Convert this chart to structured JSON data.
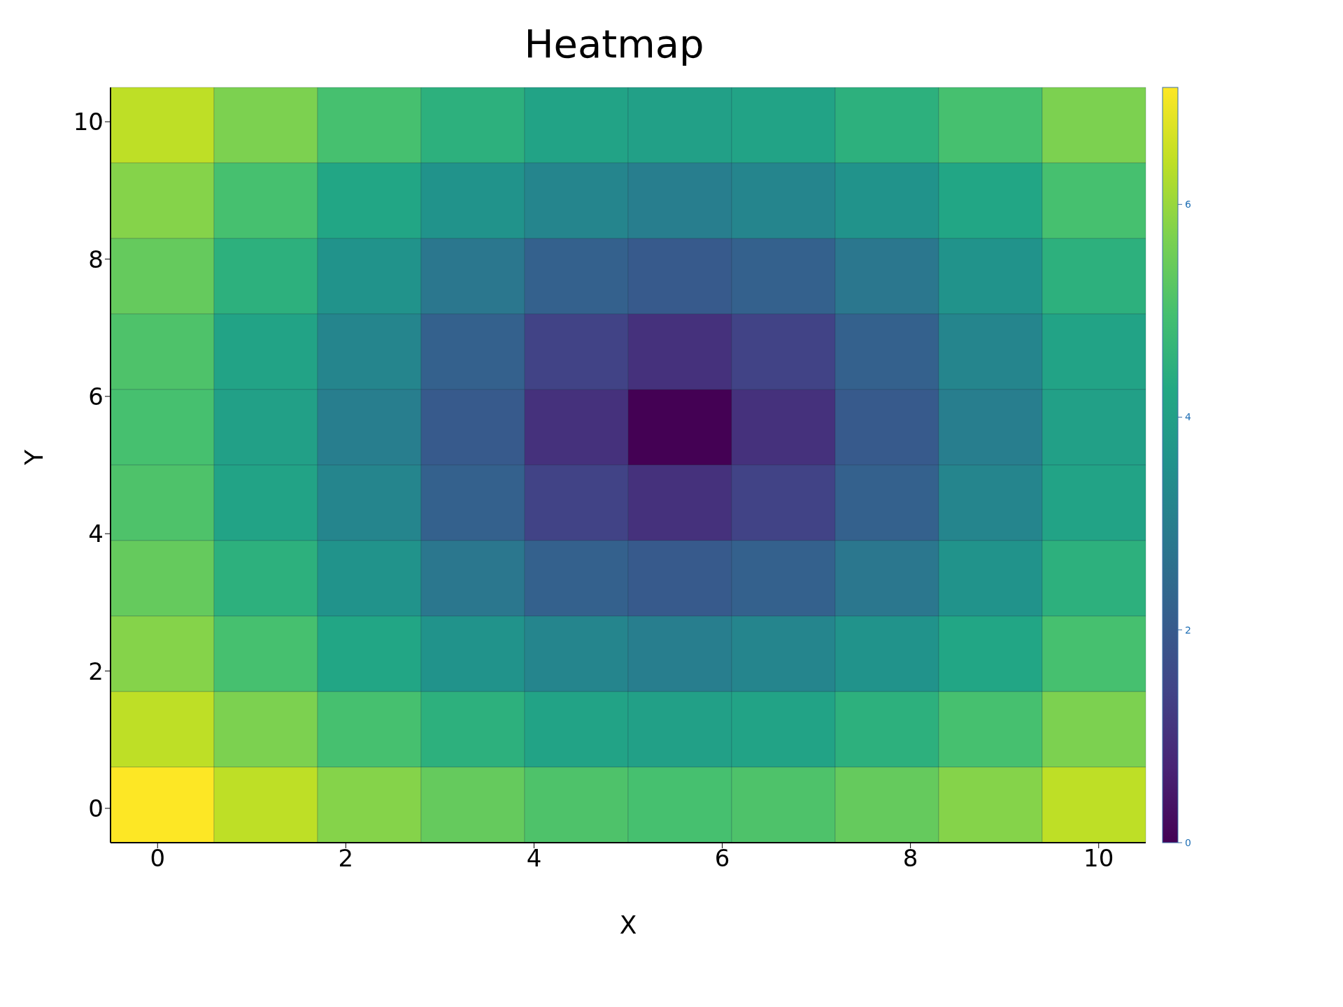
{
  "chart_data": {
    "type": "heatmap",
    "title": "Heatmap",
    "xlabel": "X",
    "ylabel": "Y",
    "xlim": [
      -0.5,
      10.5
    ],
    "ylim": [
      -0.5,
      10.5
    ],
    "xticks": [
      0,
      2,
      4,
      6,
      8,
      10
    ],
    "yticks": [
      0,
      2,
      4,
      6,
      8,
      10
    ],
    "clim": [
      0,
      7.1
    ],
    "cticks": [
      0,
      2,
      4,
      6
    ],
    "cells": [
      [
        6.4,
        5.7,
        5.0,
        4.5,
        4.1,
        4.0,
        4.1,
        4.5,
        5.0,
        5.7
      ],
      [
        5.8,
        5.0,
        4.2,
        3.6,
        3.2,
        3.0,
        3.2,
        3.6,
        4.2,
        5.0
      ],
      [
        5.4,
        4.5,
        3.6,
        2.8,
        2.2,
        2.0,
        2.2,
        2.8,
        3.6,
        4.5
      ],
      [
        5.1,
        4.1,
        3.2,
        2.2,
        1.4,
        1.0,
        1.4,
        2.2,
        3.2,
        4.1
      ],
      [
        5.0,
        4.0,
        3.0,
        2.0,
        1.0,
        0.0,
        1.0,
        2.0,
        3.0,
        4.0
      ],
      [
        5.1,
        4.1,
        3.2,
        2.2,
        1.4,
        1.0,
        1.4,
        2.2,
        3.2,
        4.1
      ],
      [
        5.4,
        4.5,
        3.6,
        2.8,
        2.2,
        2.0,
        2.2,
        2.8,
        3.6,
        4.5
      ],
      [
        5.8,
        5.0,
        4.2,
        3.6,
        3.2,
        3.0,
        3.2,
        3.6,
        4.2,
        5.0
      ],
      [
        6.4,
        5.7,
        5.0,
        4.5,
        4.1,
        4.0,
        4.1,
        4.5,
        5.0,
        5.7
      ],
      [
        7.1,
        6.4,
        5.8,
        5.4,
        5.1,
        5.0,
        5.1,
        5.4,
        5.8,
        6.4
      ]
    ]
  }
}
